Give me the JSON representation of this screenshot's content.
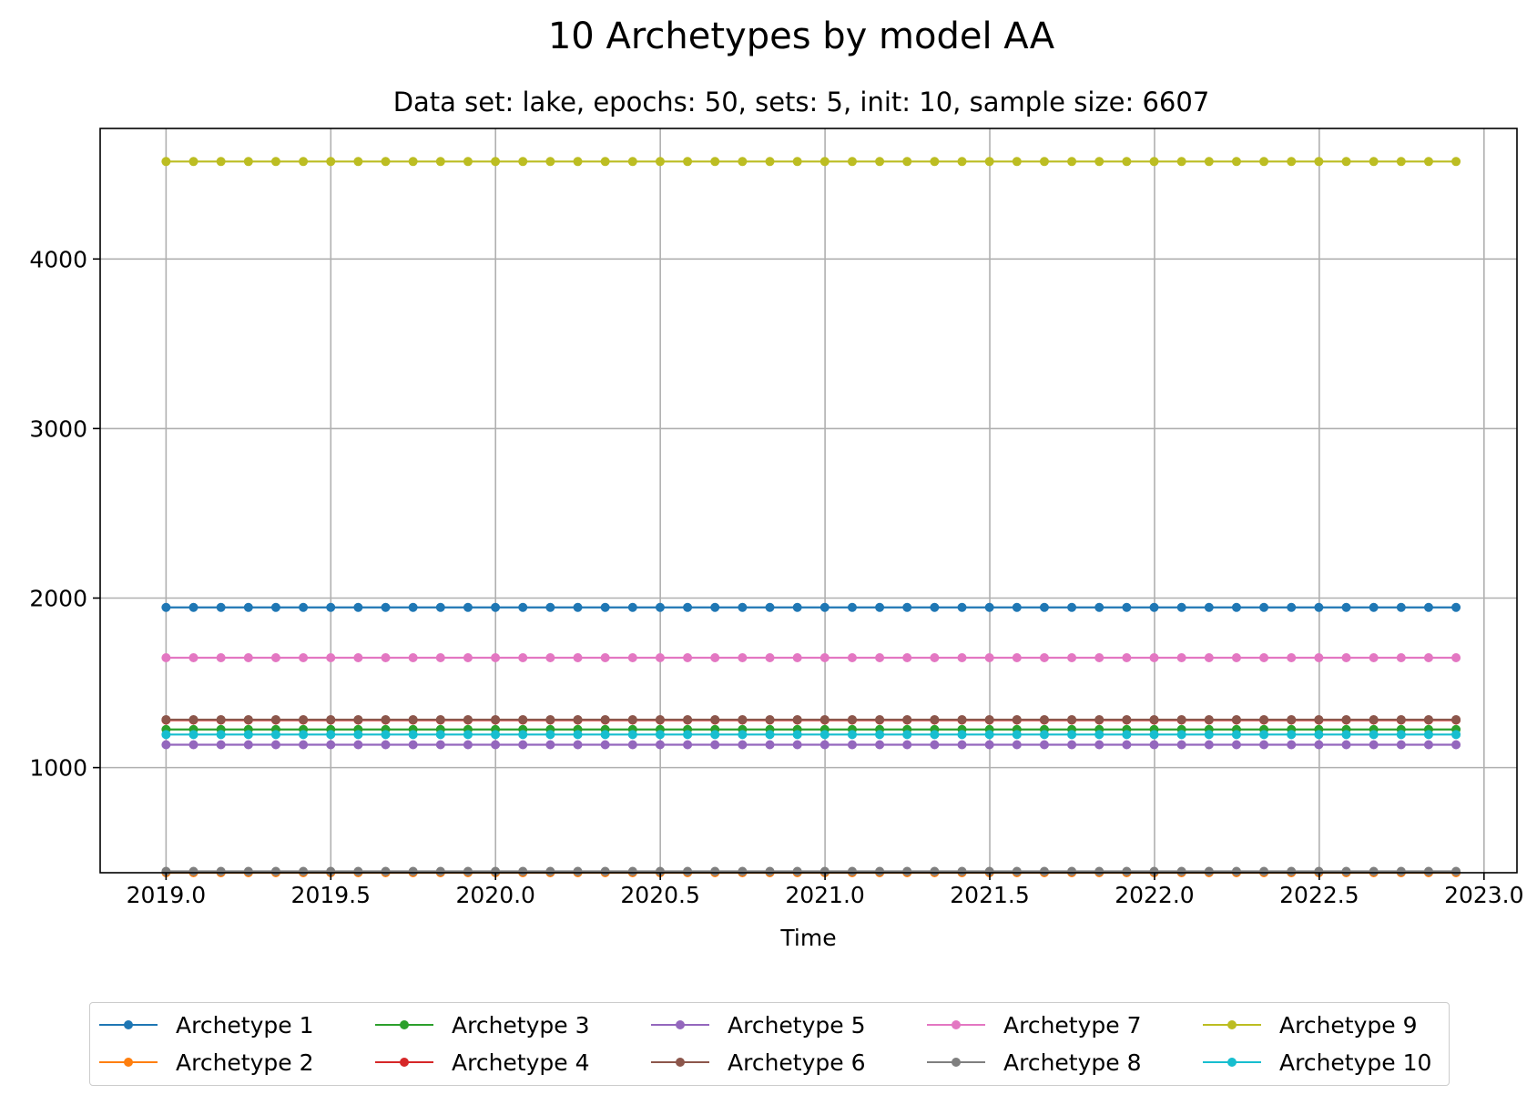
{
  "chart_data": {
    "type": "line",
    "title": "10 Archetypes by model AA",
    "subtitle": "Data set: lake, epochs: 50, sets: 5, init: 10, sample size: 6607",
    "xlabel": "Time",
    "ylabel": "",
    "xlim": [
      2018.8,
      2023.1
    ],
    "ylim": [
      380,
      4770
    ],
    "x_ticks": [
      2019.0,
      2019.5,
      2020.0,
      2020.5,
      2021.0,
      2021.5,
      2022.0,
      2022.5,
      2023.0
    ],
    "x_tick_labels": [
      "2019.0",
      "2019.5",
      "2020.0",
      "2020.5",
      "2021.0",
      "2021.5",
      "2022.0",
      "2022.5",
      "2023.0"
    ],
    "y_ticks": [
      1000,
      2000,
      3000,
      4000
    ],
    "y_tick_labels": [
      "1000",
      "2000",
      "3000",
      "4000"
    ],
    "grid": true,
    "legend_position": "bottom-center",
    "x_start": 2019.0,
    "x_step": 0.0833,
    "num_points": 48,
    "series": [
      {
        "name": "Archetype 1",
        "color": "#1f77b4",
        "value": 1945
      },
      {
        "name": "Archetype 2",
        "color": "#ff7f0e",
        "value": 380
      },
      {
        "name": "Archetype 3",
        "color": "#2ca02c",
        "value": 1225
      },
      {
        "name": "Archetype 4",
        "color": "#d62728",
        "value": 1280
      },
      {
        "name": "Archetype 5",
        "color": "#9467bd",
        "value": 1135
      },
      {
        "name": "Archetype 6",
        "color": "#8c564b",
        "value": 1283
      },
      {
        "name": "Archetype 7",
        "color": "#e377c2",
        "value": 1648
      },
      {
        "name": "Archetype 8",
        "color": "#7f7f7f",
        "value": 388
      },
      {
        "name": "Archetype 9",
        "color": "#bcbd22",
        "value": 4575
      },
      {
        "name": "Archetype 10",
        "color": "#17becf",
        "value": 1195
      }
    ]
  }
}
